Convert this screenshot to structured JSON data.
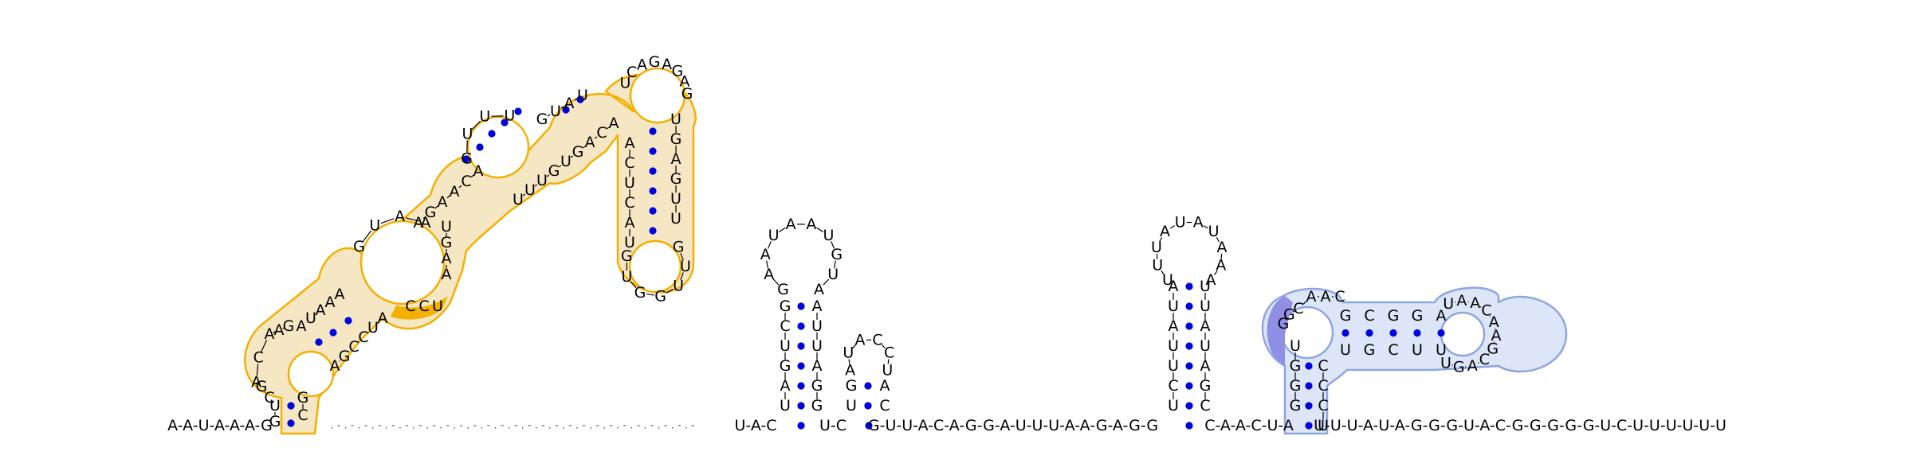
{
  "figure": {
    "type": "rna-secondary-structure",
    "colors": {
      "nucleotide_text": "#000000",
      "base_pair_dot": "#0000dd",
      "backbone_link": "#000000",
      "highlight_1_outline": "#f4b000",
      "highlight_1_fill": "#f6e7c4",
      "highlight_1_accent": "#f4b000",
      "highlight_2_outline": "#8fa5e2",
      "highlight_2_fill": "#dde6f8",
      "highlight_2_accent": "#8f8fe6"
    }
  },
  "sequence": {
    "five_prime_tail": "A-A-U-A-A-A-G",
    "hairpin_1": {
      "five_prime_stem": [
        "G",
        "U",
        "C",
        "G",
        "A",
        "C",
        "A",
        "A",
        "G"
      ],
      "loop_letters": [
        "A",
        "U",
        "A",
        "A",
        "A",
        "G",
        "U",
        "A",
        "A"
      ],
      "inner_stem_left": [
        "A",
        "G",
        "A",
        "A",
        "C",
        "A",
        "G",
        "U",
        "U",
        "U"
      ],
      "top_left_upper": [
        "G",
        "U",
        "A",
        "U"
      ],
      "top_loop": [
        "U",
        "C",
        "A",
        "G",
        "A",
        "G",
        "A",
        "G"
      ],
      "top_stem_right": [
        "U",
        "G",
        "A",
        "G",
        "U",
        "U"
      ],
      "lower_loop_right": [
        "G",
        "U",
        "U",
        "G",
        "G",
        "U",
        "G"
      ],
      "top_stem_left": [
        "U",
        "A",
        "C",
        "U",
        "C",
        "A"
      ],
      "mid_right": [
        "A",
        "C",
        "A",
        "G",
        "U",
        "G",
        "U",
        "U",
        "U"
      ],
      "lower_right": [
        "U",
        "G",
        "A",
        "A"
      ],
      "highlight_run": [
        "C",
        "C",
        "U"
      ],
      "closing_right": [
        "A",
        "U",
        "C",
        "C",
        "G",
        "A",
        "G",
        "C"
      ]
    },
    "gap_run": ". - . - . - . - . - . - . - . - . - . - . - . - . - . - . - . - . - . - . - . - . - . - . - . - . - . - . -",
    "linker_1": "U-A-C",
    "hairpin_2": {
      "left_stem": [
        "U",
        "A",
        "G",
        "U",
        "C",
        "G"
      ],
      "loop": [
        "G",
        "A",
        "A",
        "U",
        "A",
        "A",
        "U",
        "G",
        "U",
        "A"
      ],
      "right_stem": [
        "A",
        "U",
        "U",
        "A",
        "G",
        "G"
      ]
    },
    "linker_2": "U-C",
    "hairpin_3": {
      "left_stem": [
        "U",
        "G"
      ],
      "loop": [
        "A",
        "U",
        "A",
        "C",
        "C",
        "U"
      ],
      "right_stem": [
        "C",
        "A"
      ]
    },
    "linker_3": "G-U-U-A-C-A-G-G-A-U-U-U-A-A-G-A-G-G",
    "hairpin_4": {
      "left_stem": [
        "U",
        "C",
        "U",
        "U",
        "A",
        "U",
        "A"
      ],
      "loop": [
        "U",
        "U",
        "U",
        "A",
        "U",
        "A",
        "U",
        "A",
        "A",
        "A"
      ],
      "right_stem": [
        "U",
        "U",
        "A",
        "U",
        "A",
        "G",
        "C"
      ]
    },
    "linker_4": "C-A-A-C-U-A",
    "hairpin_5": {
      "left_stem": [
        "G",
        "G",
        "G",
        "U",
        "G",
        "G",
        "C"
      ],
      "bulge": [
        "A",
        "A",
        "C"
      ],
      "upper_stem_top": [
        "G",
        "C",
        "G",
        "G",
        "A"
      ],
      "loop": [
        "U",
        "A",
        "A",
        "C",
        "A",
        "A",
        "G",
        "C",
        "A",
        "G",
        "U"
      ],
      "upper_stem_bottom": [
        "U",
        "U",
        "C",
        "G",
        "U"
      ],
      "right_stem": [
        "C",
        "C",
        "C",
        "U"
      ]
    },
    "three_prime_tail": "U-U-U-A-U-A-G-G-G-U-A-C-G-G-G-G-G-U-C-U-U-U-U-U-U"
  }
}
